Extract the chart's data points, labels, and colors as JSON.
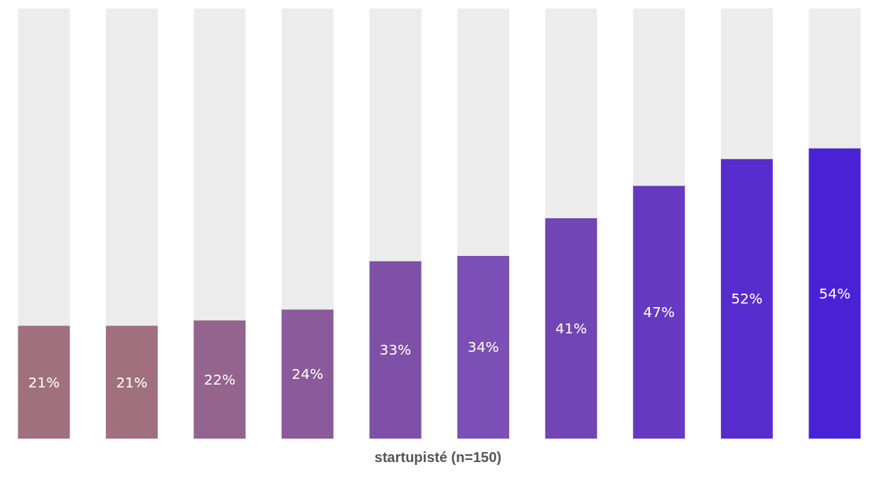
{
  "chart_data": {
    "type": "bar",
    "xlabel": "startupisté (n=150)",
    "categories": [
      null,
      null,
      null,
      null,
      null,
      null,
      null,
      null,
      null,
      null
    ],
    "values": [
      21,
      21,
      22,
      24,
      33,
      34,
      41,
      47,
      52,
      54
    ],
    "colors": [
      "#a0707f",
      "#a0707f",
      "#94638e",
      "#8a5a9a",
      "#7e50a8",
      "#7b4fb5",
      "#7245b5",
      "#653ac0",
      "#572ccc",
      "#4a22d6"
    ],
    "ylim": [
      0,
      80
    ],
    "data_labels": true,
    "value_labels": [
      "21%",
      "21%",
      "22%",
      "24%",
      "33%",
      "34%",
      "41%",
      "47%",
      "52%",
      "54%"
    ]
  }
}
